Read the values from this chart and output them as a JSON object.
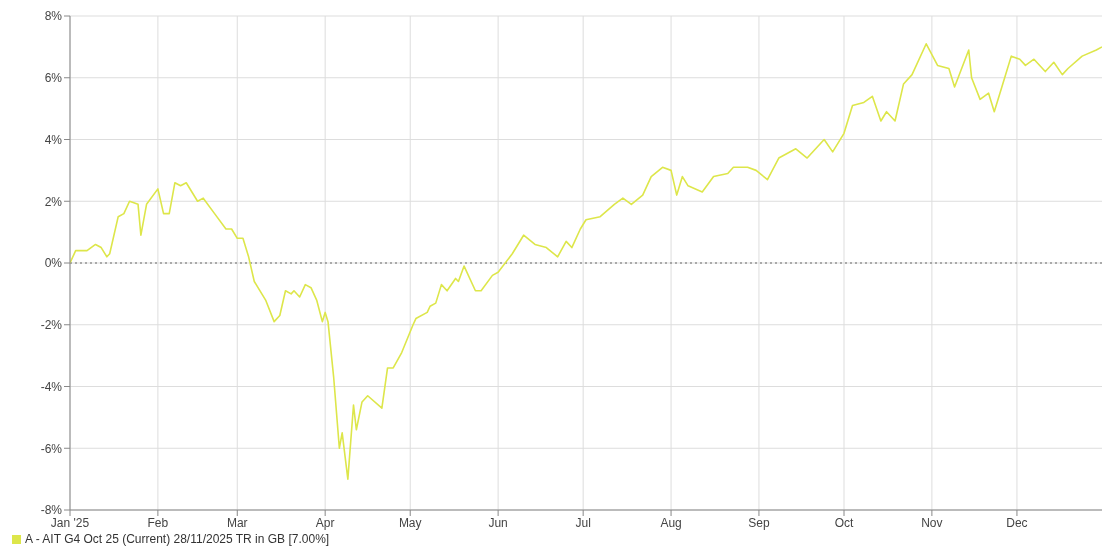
{
  "chart_data": {
    "type": "line",
    "x": [
      "2025-01-01",
      "2025-01-03",
      "2025-01-07",
      "2025-01-10",
      "2025-01-12",
      "2025-01-14",
      "2025-01-15",
      "2025-01-18",
      "2025-01-20",
      "2025-01-22",
      "2025-01-25",
      "2025-01-26",
      "2025-01-28",
      "2025-02-01",
      "2025-02-03",
      "2025-02-05",
      "2025-02-07",
      "2025-02-09",
      "2025-02-11",
      "2025-02-15",
      "2025-02-17",
      "2025-02-21",
      "2025-02-25",
      "2025-02-27",
      "2025-03-01",
      "2025-03-03",
      "2025-03-05",
      "2025-03-07",
      "2025-03-11",
      "2025-03-14",
      "2025-03-16",
      "2025-03-18",
      "2025-03-20",
      "2025-03-21",
      "2025-03-23",
      "2025-03-25",
      "2025-03-27",
      "2025-03-29",
      "2025-03-31",
      "2025-04-01",
      "2025-04-02",
      "2025-04-04",
      "2025-04-06",
      "2025-04-07",
      "2025-04-09",
      "2025-04-11",
      "2025-04-12",
      "2025-04-14",
      "2025-04-16",
      "2025-04-21",
      "2025-04-23",
      "2025-04-25",
      "2025-04-28",
      "2025-05-02",
      "2025-05-03",
      "2025-05-07",
      "2025-05-08",
      "2025-05-10",
      "2025-05-12",
      "2025-05-14",
      "2025-05-17",
      "2025-05-18",
      "2025-05-20",
      "2025-05-24",
      "2025-05-26",
      "2025-05-30",
      "2025-06-01",
      "2025-06-06",
      "2025-06-10",
      "2025-06-14",
      "2025-06-18",
      "2025-06-22",
      "2025-06-25",
      "2025-06-27",
      "2025-06-30",
      "2025-07-02",
      "2025-07-07",
      "2025-07-12",
      "2025-07-15",
      "2025-07-18",
      "2025-07-22",
      "2025-07-25",
      "2025-07-29",
      "2025-08-01",
      "2025-08-03",
      "2025-08-05",
      "2025-08-07",
      "2025-08-12",
      "2025-08-16",
      "2025-08-21",
      "2025-08-23",
      "2025-08-28",
      "2025-08-31",
      "2025-09-04",
      "2025-09-08",
      "2025-09-14",
      "2025-09-18",
      "2025-09-24",
      "2025-09-27",
      "2025-10-01",
      "2025-10-04",
      "2025-10-08",
      "2025-10-11",
      "2025-10-14",
      "2025-10-16",
      "2025-10-19",
      "2025-10-22",
      "2025-10-25",
      "2025-10-30",
      "2025-11-03",
      "2025-11-07",
      "2025-11-09",
      "2025-11-14",
      "2025-11-15",
      "2025-11-18",
      "2025-11-21",
      "2025-11-23",
      "2025-11-26",
      "2025-11-29",
      "2025-12-02",
      "2025-12-04",
      "2025-12-07",
      "2025-12-11",
      "2025-12-14",
      "2025-12-17",
      "2025-12-19",
      "2025-12-24",
      "2025-12-29",
      "2025-12-31"
    ],
    "series": [
      {
        "name": "A - AIT G4 Oct 25 (Current) 28/11/2025 TR in GB [7.00%]",
        "color": "#dde64a",
        "values": [
          0.0,
          0.4,
          0.4,
          0.6,
          0.5,
          0.2,
          0.3,
          1.5,
          1.6,
          2.0,
          1.9,
          0.9,
          1.9,
          2.4,
          1.6,
          1.6,
          2.6,
          2.5,
          2.6,
          2.0,
          2.1,
          1.6,
          1.1,
          1.1,
          0.8,
          0.8,
          0.2,
          -0.6,
          -1.2,
          -1.9,
          -1.7,
          -0.9,
          -1.0,
          -0.9,
          -1.1,
          -0.7,
          -0.8,
          -1.2,
          -1.9,
          -1.6,
          -1.9,
          -3.7,
          -6.0,
          -5.5,
          -7.0,
          -4.6,
          -5.4,
          -4.5,
          -4.3,
          -4.7,
          -3.4,
          -3.4,
          -2.9,
          -2.0,
          -1.8,
          -1.6,
          -1.4,
          -1.3,
          -0.7,
          -0.9,
          -0.5,
          -0.6,
          -0.1,
          -0.9,
          -0.9,
          -0.4,
          -0.3,
          0.3,
          0.9,
          0.6,
          0.5,
          0.2,
          0.7,
          0.5,
          1.1,
          1.4,
          1.5,
          1.9,
          2.1,
          1.9,
          2.2,
          2.8,
          3.1,
          3.0,
          2.2,
          2.8,
          2.5,
          2.3,
          2.8,
          2.9,
          3.1,
          3.1,
          3.0,
          2.7,
          3.4,
          3.7,
          3.4,
          4.0,
          3.6,
          4.2,
          5.1,
          5.2,
          5.4,
          4.6,
          4.9,
          4.6,
          5.8,
          6.1,
          7.1,
          6.4,
          6.3,
          5.7,
          6.9,
          6.0,
          5.3,
          5.5,
          4.9,
          5.8,
          6.7,
          6.6,
          6.4,
          6.6,
          6.2,
          6.5,
          6.1,
          6.3,
          6.7,
          6.9,
          7.0
        ]
      }
    ],
    "xlim": [
      "2025-01-01",
      "2025-12-31"
    ],
    "xticks": [
      {
        "value": "2025-01-01",
        "label": "Jan '25"
      },
      {
        "value": "2025-02-01",
        "label": "Feb"
      },
      {
        "value": "2025-03-01",
        "label": "Mar"
      },
      {
        "value": "2025-04-01",
        "label": "Apr"
      },
      {
        "value": "2025-05-01",
        "label": "May"
      },
      {
        "value": "2025-06-01",
        "label": "Jun"
      },
      {
        "value": "2025-07-01",
        "label": "Jul"
      },
      {
        "value": "2025-08-01",
        "label": "Aug"
      },
      {
        "value": "2025-09-01",
        "label": "Sep"
      },
      {
        "value": "2025-10-01",
        "label": "Oct"
      },
      {
        "value": "2025-11-01",
        "label": "Nov"
      },
      {
        "value": "2025-12-01",
        "label": "Dec"
      }
    ],
    "ylim": [
      -8,
      8
    ],
    "yticks": [
      {
        "value": -8,
        "label": "-8%"
      },
      {
        "value": -6,
        "label": "-6%"
      },
      {
        "value": -4,
        "label": "-4%"
      },
      {
        "value": -2,
        "label": "-2%"
      },
      {
        "value": 0,
        "label": "0%"
      },
      {
        "value": 2,
        "label": "2%"
      },
      {
        "value": 4,
        "label": "4%"
      },
      {
        "value": 6,
        "label": "6%"
      },
      {
        "value": 8,
        "label": "8%"
      }
    ],
    "ref_lines": [
      {
        "axis": "y",
        "value": 0,
        "color": "#666666",
        "line_style": "dotted"
      }
    ],
    "grid": true,
    "legend": "bottom left",
    "marker": "none",
    "line_style": "solid"
  }
}
